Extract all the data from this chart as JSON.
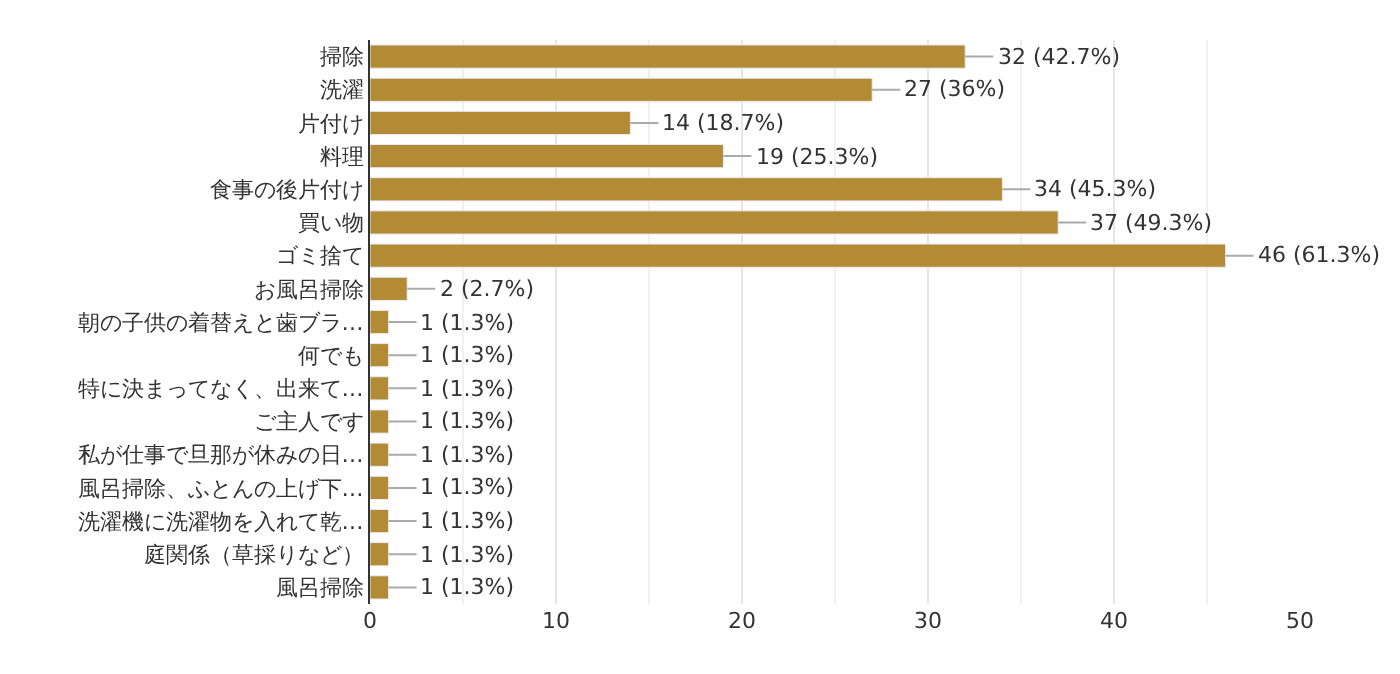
{
  "chart_data": {
    "type": "bar",
    "orientation": "horizontal",
    "categories": [
      "掃除",
      "洗濯",
      "片付け",
      "料理",
      "食事の後片付け",
      "買い物",
      "ゴミ捨て",
      "お風呂掃除",
      "朝の子供の着替えと歯ブラ…",
      "何でも",
      "特に決まってなく、出来て…",
      "ご主人です",
      "私が仕事で旦那が休みの日…",
      "風呂掃除、ふとんの上げ下…",
      "洗濯機に洗濯物を入れて乾…",
      "庭関係（草採りなど）",
      "風呂掃除"
    ],
    "values": [
      32,
      27,
      14,
      19,
      34,
      37,
      46,
      2,
      1,
      1,
      1,
      1,
      1,
      1,
      1,
      1,
      1
    ],
    "value_labels": [
      "32 (42.7%)",
      "27 (36%)",
      "14 (18.7%)",
      "19 (25.3%)",
      "34 (45.3%)",
      "37 (49.3%)",
      "46 (61.3%)",
      "2 (2.7%)",
      "1 (1.3%)",
      "1 (1.3%)",
      "1 (1.3%)",
      "1 (1.3%)",
      "1 (1.3%)",
      "1 (1.3%)",
      "1 (1.3%)",
      "1 (1.3%)",
      "1 (1.3%)"
    ],
    "color": "#b38b35",
    "xlim": [
      0,
      50
    ],
    "xticks": [
      0,
      10,
      20,
      30,
      40,
      50
    ],
    "grid": "x"
  }
}
